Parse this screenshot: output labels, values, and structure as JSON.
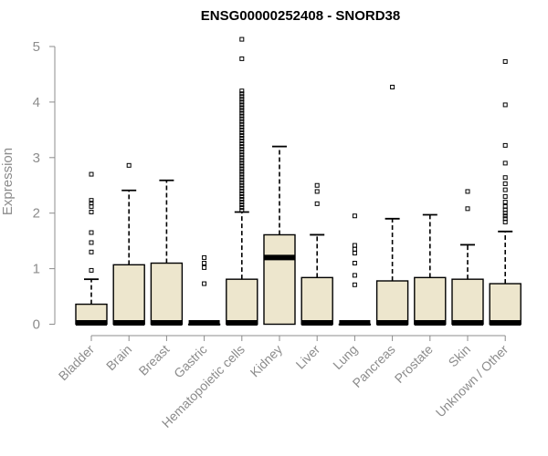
{
  "chart_data": {
    "type": "boxplot",
    "title": "ENSG00000252408 - SNORD38",
    "ylabel": "Expression",
    "xlabel": "",
    "ylim": [
      0,
      5.15
    ],
    "yticks": [
      "0",
      "1",
      "2",
      "3",
      "4",
      "5"
    ],
    "grid": false,
    "colors": {
      "box_fill": "#ede6cd",
      "box_border": "#000000",
      "axis": "#8c8c8c"
    },
    "categories": [
      "Bladder",
      "Brain",
      "Breast",
      "Gastric",
      "Hematopoietic cells",
      "Kidney",
      "Liver",
      "Lung",
      "Pancreas",
      "Prostate",
      "Skin",
      "Unknown / Other"
    ],
    "boxes": [
      {
        "q1": 0,
        "median": 0,
        "q3": 0.36,
        "whisker_low": 0,
        "whisker_high": 0.81,
        "outliers": [
          0.97,
          1.3,
          1.47,
          1.65,
          2.02,
          2.12,
          2.18,
          2.23,
          2.7
        ]
      },
      {
        "q1": 0,
        "median": 0,
        "q3": 1.07,
        "whisker_low": 0,
        "whisker_high": 2.41,
        "outliers": [
          2.86
        ]
      },
      {
        "q1": 0,
        "median": 0,
        "q3": 1.1,
        "whisker_low": 0,
        "whisker_high": 2.59,
        "outliers": []
      },
      {
        "q1": 0,
        "median": 0,
        "q3": 0,
        "whisker_low": 0,
        "whisker_high": 0,
        "outliers": [
          0.73,
          1.02,
          1.1,
          1.2
        ]
      },
      {
        "q1": 0,
        "median": 0,
        "q3": 0.81,
        "whisker_low": 0,
        "whisker_high": 2.02,
        "outliers": [
          2.05,
          2.1,
          2.15,
          2.2,
          2.25,
          2.3,
          2.35,
          2.4,
          2.45,
          2.5,
          2.55,
          2.6,
          2.65,
          2.7,
          2.75,
          2.8,
          2.85,
          2.9,
          2.95,
          3.0,
          3.05,
          3.1,
          3.15,
          3.2,
          3.25,
          3.3,
          3.35,
          3.4,
          3.45,
          3.5,
          3.55,
          3.6,
          3.65,
          3.7,
          3.75,
          3.8,
          3.85,
          3.9,
          3.95,
          4.0,
          4.05,
          4.1,
          4.15,
          4.2,
          4.78,
          5.13
        ]
      },
      {
        "q1": 0,
        "median": 1.2,
        "q3": 1.61,
        "whisker_low": 0,
        "whisker_high": 3.2,
        "outliers": []
      },
      {
        "q1": 0,
        "median": 0,
        "q3": 0.84,
        "whisker_low": 0,
        "whisker_high": 1.61,
        "outliers": [
          2.17,
          2.39,
          2.5
        ]
      },
      {
        "q1": 0,
        "median": 0,
        "q3": 0,
        "whisker_low": 0,
        "whisker_high": 0,
        "outliers": [
          0.71,
          0.88,
          1.1,
          1.28,
          1.35,
          1.42,
          1.95
        ]
      },
      {
        "q1": 0,
        "median": 0,
        "q3": 0.78,
        "whisker_low": 0,
        "whisker_high": 1.9,
        "outliers": [
          4.27
        ]
      },
      {
        "q1": 0,
        "median": 0,
        "q3": 0.84,
        "whisker_low": 0,
        "whisker_high": 1.97,
        "outliers": []
      },
      {
        "q1": 0,
        "median": 0,
        "q3": 0.81,
        "whisker_low": 0,
        "whisker_high": 1.43,
        "outliers": [
          2.08,
          2.39
        ]
      },
      {
        "q1": 0,
        "median": 0,
        "q3": 0.73,
        "whisker_low": 0,
        "whisker_high": 1.67,
        "outliers": [
          1.84,
          1.9,
          1.95,
          2.0,
          2.06,
          2.12,
          2.2,
          2.3,
          2.42,
          2.53,
          2.64,
          2.9,
          3.22,
          3.95,
          4.73
        ]
      }
    ]
  }
}
